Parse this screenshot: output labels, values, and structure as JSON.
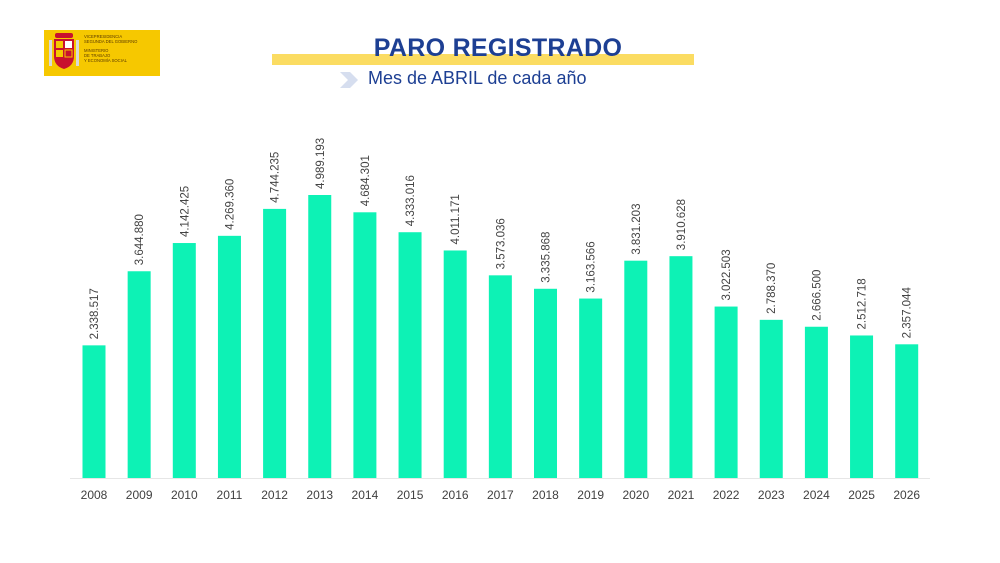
{
  "logo": {
    "lines": [
      "VICEPRESIDENCIA",
      "SEGUNDA DEL GOBIERNO",
      "MINISTERIO",
      "DE TRABAJO",
      "Y ECONOMÍA SOCIAL"
    ]
  },
  "colors": {
    "bar": "#0df2b5",
    "title": "#1d3f93",
    "band": "#fbdc62",
    "label": "#444444"
  },
  "chart_data": {
    "type": "bar",
    "title": "PARO REGISTRADO",
    "subtitle": "Mes de ABRIL de cada año",
    "categories": [
      "2008",
      "2009",
      "2010",
      "2011",
      "2012",
      "2013",
      "2014",
      "2015",
      "2016",
      "2017",
      "2018",
      "2019",
      "2020",
      "2021",
      "2022",
      "2023",
      "2024",
      "2025",
      "2026"
    ],
    "values": [
      2338517,
      3644880,
      4142425,
      4269360,
      4744235,
      4989193,
      4684301,
      4333016,
      4011171,
      3573036,
      3335868,
      3163566,
      3831203,
      3910628,
      3022503,
      2788370,
      2666500,
      2512718,
      2357044
    ],
    "labels": [
      "2.338.517",
      "3.644.880",
      "4.142.425",
      "4.269.360",
      "4.744.235",
      "4.989.193",
      "4.684.301",
      "4.333.016",
      "4.011.171",
      "3.573.036",
      "3.335.868",
      "3.163.566",
      "3.831.203",
      "3.910.628",
      "3.022.503",
      "2.788.370",
      "2.666.500",
      "2.512.718",
      "2.357.044"
    ],
    "xlabel": "",
    "ylabel": "",
    "ylim": [
      0,
      5000000
    ],
    "grid": false,
    "legend": "none"
  }
}
